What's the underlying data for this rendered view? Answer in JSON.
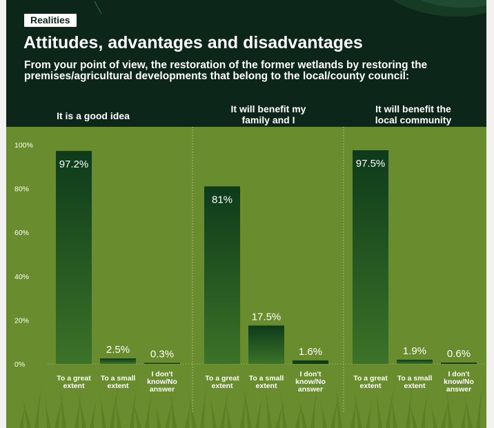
{
  "tag": "Realities",
  "title": "Attitudes, advantages and disadvantages",
  "question": "From your point of view, the restoration of the former wetlands by restoring the premises/agricultural developments that belong to the local/county council:",
  "colors": {
    "header_bg": "#0c2619",
    "chart_bg": "#698d2e",
    "bar_top": "#0d3b1b",
    "bar_bottom": "#3c7228",
    "text": "#ffffff"
  },
  "chart_data": {
    "type": "bar",
    "ylim": [
      0,
      100
    ],
    "yticks": [
      "0%",
      "20%",
      "40%",
      "60%",
      "80%",
      "100%"
    ],
    "ytick_values": [
      0,
      20,
      40,
      60,
      80,
      100
    ],
    "grid": false,
    "groups": [
      {
        "title": [
          "It is a good idea"
        ],
        "categories": [
          [
            "To a great",
            "extent"
          ],
          [
            "To a small",
            "extent"
          ],
          [
            "I don't",
            "know/No",
            "answer"
          ]
        ],
        "values": [
          97.2,
          2.5,
          0.3
        ],
        "labels": [
          "97.2%",
          "2.5%",
          "0.3%"
        ]
      },
      {
        "title": [
          "It will benefit my",
          "family and I"
        ],
        "categories": [
          [
            "To a great",
            "extent"
          ],
          [
            "To a small",
            "extent"
          ],
          [
            "I don't",
            "know/No",
            "answer"
          ]
        ],
        "values": [
          81,
          17.5,
          1.6
        ],
        "labels": [
          "81%",
          "17.5%",
          "1.6%"
        ]
      },
      {
        "title": [
          "It will benefit the",
          "local community"
        ],
        "categories": [
          [
            "To a great",
            "extent"
          ],
          [
            "To a small",
            "extent"
          ],
          [
            "I don't",
            "know/No",
            "answer"
          ]
        ],
        "values": [
          97.5,
          1.9,
          0.6
        ],
        "labels": [
          "97.5%",
          "1.9%",
          "0.6%"
        ]
      }
    ]
  }
}
